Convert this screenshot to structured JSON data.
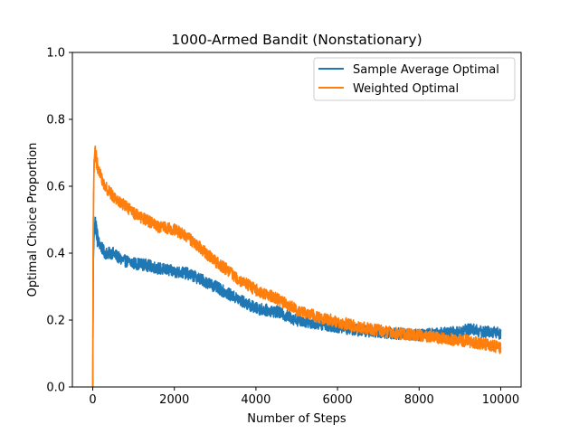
{
  "chart_data": {
    "type": "line",
    "title": "1000-Armed Bandit (Nonstationary)",
    "xlabel": "Number of Steps",
    "ylabel": "Optimal Choice Proportion",
    "xlim": [
      -500,
      10500
    ],
    "ylim": [
      0,
      1
    ],
    "x_ticks": [
      0,
      2000,
      4000,
      6000,
      8000,
      10000
    ],
    "y_ticks": [
      0.0,
      0.2,
      0.4,
      0.6,
      0.8,
      1.0
    ],
    "x_tick_labels": [
      "0",
      "2000",
      "4000",
      "6000",
      "8000",
      "10000"
    ],
    "y_tick_labels": [
      "0.0",
      "0.2",
      "0.4",
      "0.6",
      "0.8",
      "1.0"
    ],
    "grid": false,
    "legend_position": "upper right",
    "series": [
      {
        "name": "Sample Average Optimal",
        "color": "#1f77b4",
        "x": [
          0,
          10,
          30,
          50,
          80,
          120,
          200,
          300,
          500,
          700,
          1000,
          1300,
          1600,
          2000,
          2300,
          2600,
          3000,
          3300,
          3600,
          4000,
          4500,
          5000,
          5500,
          6000,
          6500,
          7000,
          7500,
          8000,
          8500,
          9000,
          9300,
          9500,
          9800,
          10000
        ],
        "y": [
          0.0,
          0.35,
          0.46,
          0.49,
          0.47,
          0.44,
          0.42,
          0.4,
          0.4,
          0.38,
          0.37,
          0.365,
          0.355,
          0.345,
          0.34,
          0.325,
          0.3,
          0.28,
          0.26,
          0.235,
          0.225,
          0.2,
          0.19,
          0.18,
          0.17,
          0.165,
          0.16,
          0.155,
          0.16,
          0.165,
          0.175,
          0.165,
          0.165,
          0.16
        ]
      },
      {
        "name": "Weighted Optimal",
        "color": "#ff7f0e",
        "x": [
          0,
          10,
          30,
          50,
          80,
          120,
          200,
          300,
          500,
          700,
          1000,
          1300,
          1600,
          2000,
          2300,
          2600,
          3000,
          3300,
          3600,
          4000,
          4500,
          5000,
          5500,
          6000,
          6500,
          7000,
          7500,
          8000,
          8500,
          9000,
          9300,
          9500,
          9800,
          10000
        ],
        "y": [
          0.0,
          0.45,
          0.66,
          0.7,
          0.69,
          0.66,
          0.63,
          0.6,
          0.57,
          0.55,
          0.52,
          0.5,
          0.48,
          0.47,
          0.45,
          0.42,
          0.375,
          0.35,
          0.32,
          0.29,
          0.265,
          0.23,
          0.21,
          0.195,
          0.18,
          0.17,
          0.16,
          0.155,
          0.145,
          0.14,
          0.135,
          0.13,
          0.125,
          0.115
        ]
      }
    ]
  }
}
